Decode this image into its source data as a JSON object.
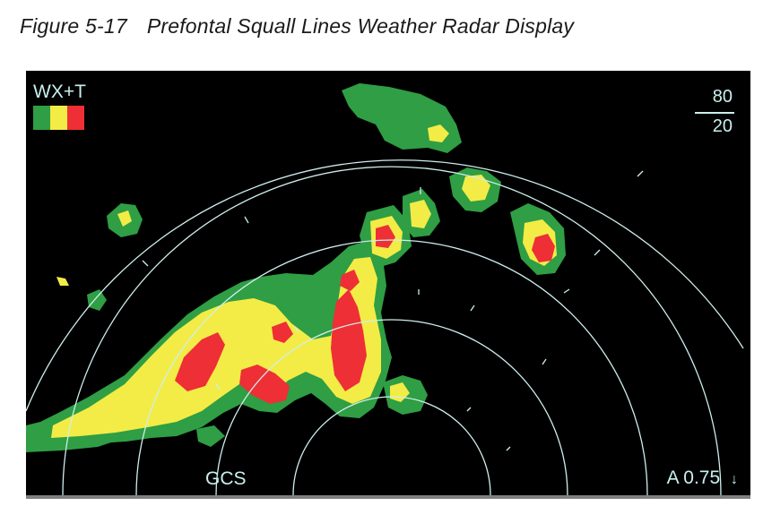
{
  "figure": {
    "number": "Figure 5-17",
    "title": "Prefontal Squall Lines Weather Radar Display"
  },
  "radar": {
    "mode": "WX+T",
    "legend": [
      {
        "level": "green",
        "color": "#2f9e44"
      },
      {
        "level": "yellow",
        "color": "#f3ec46"
      },
      {
        "level": "red",
        "color": "#ee2f35"
      }
    ],
    "range_top": "80",
    "range_bottom": "20",
    "tilt_readout": "A 0.75",
    "tilt_arrow": "↓",
    "mode_label_bottom": "GCS",
    "colors": {
      "background": "#000000",
      "rings": "#cfeeee",
      "text": "#c8f0ee",
      "green": "#2f9e44",
      "yellow": "#f3ec46",
      "red": "#ee2f35"
    }
  }
}
